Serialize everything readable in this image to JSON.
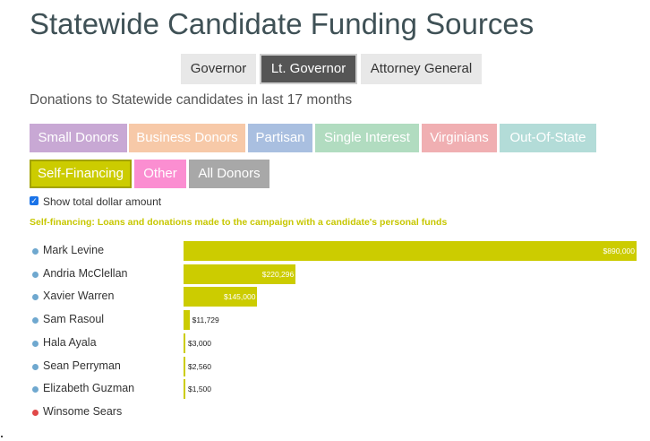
{
  "page": {
    "title": "Statewide Candidate Funding Sources",
    "subtitle": "Donations to Statewide candidates in last 17 months"
  },
  "office_tabs": [
    {
      "label": "Governor",
      "active": false
    },
    {
      "label": "Lt. Governor",
      "active": true
    },
    {
      "label": "Attorney General",
      "active": false
    }
  ],
  "filters": [
    {
      "label": "Small Donors",
      "color": "#c8a8d4",
      "selected": false
    },
    {
      "label": "Business Donors",
      "color": "#f7c9a8",
      "selected": false
    },
    {
      "label": "Partisan",
      "color": "#a9bfe0",
      "selected": false
    },
    {
      "label": "Single Interest",
      "color": "#b1dcc0",
      "selected": false
    },
    {
      "label": "Virginians",
      "color": "#f0afb2",
      "selected": false
    },
    {
      "label": "Out-Of-State",
      "color": "#b3dcd8",
      "selected": false
    },
    {
      "label": "Self-Financing",
      "color": "#cccc00",
      "selected": true
    },
    {
      "label": "Other",
      "color": "#fb8ed1",
      "selected": false
    },
    {
      "label": "All Donors",
      "color": "#a8a8a8",
      "selected": false
    }
  ],
  "show_total": {
    "label": "Show total dollar amount",
    "checked": true
  },
  "description": "Self-financing: Loans and donations made to the campaign with a candidate's personal funds",
  "chart_data": {
    "type": "bar",
    "orientation": "horizontal",
    "bar_color": "#cccc00",
    "categories": [
      "Mark Levine",
      "Andria McClellan",
      "Xavier Warren",
      "Sam Rasoul",
      "Hala Ayala",
      "Sean Perryman",
      "Elizabeth Guzman",
      "Winsome Sears"
    ],
    "values": [
      890000,
      220296,
      145000,
      11729,
      3000,
      2560,
      1500,
      0
    ],
    "value_labels": [
      "$890,000",
      "$220,296",
      "$145,000",
      "$11,729",
      "$3,000",
      "$2,560",
      "$1,500",
      ""
    ],
    "party_colors": [
      "#6fa8cf",
      "#6fa8cf",
      "#6fa8cf",
      "#6fa8cf",
      "#6fa8cf",
      "#6fa8cf",
      "#6fa8cf",
      "#e04848"
    ],
    "xlim": [
      0,
      890000
    ]
  }
}
